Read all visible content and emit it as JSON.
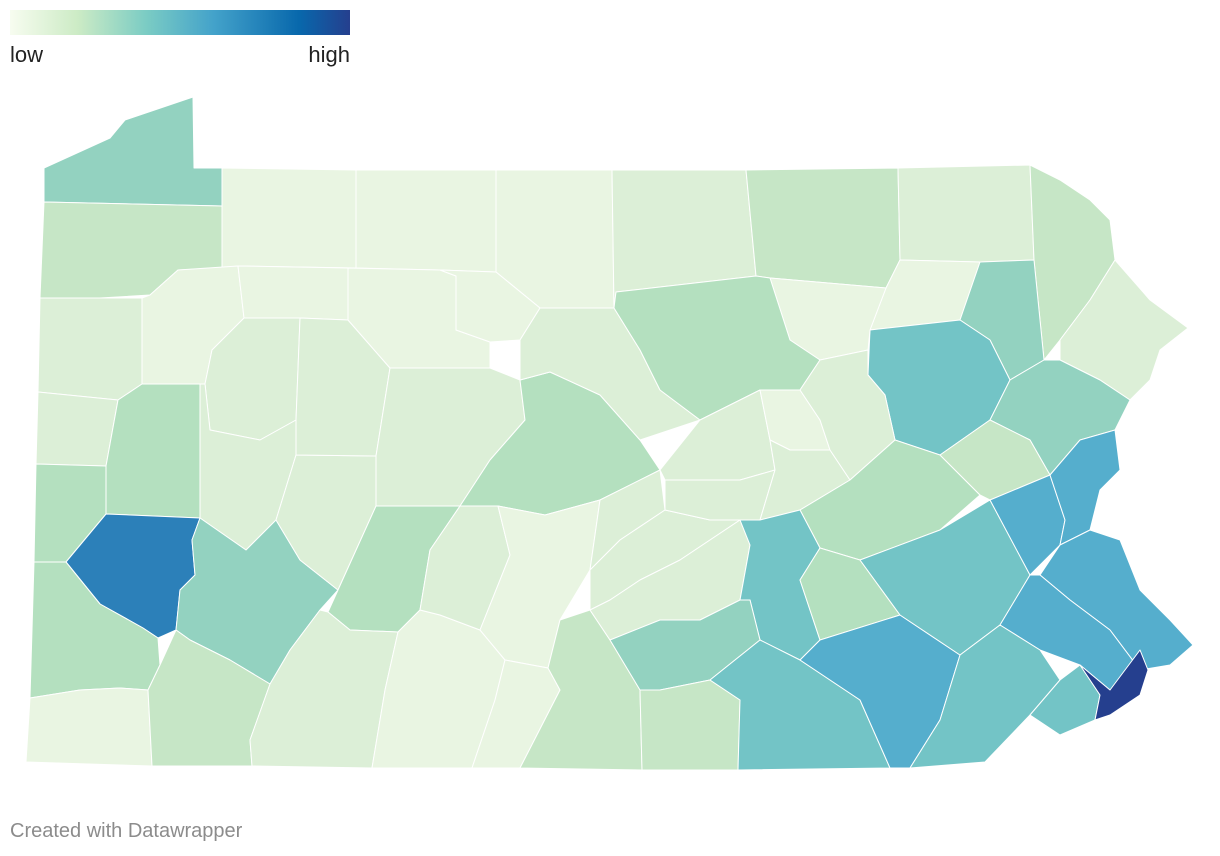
{
  "legend": {
    "low_label": "low",
    "high_label": "high",
    "gradient_colors": [
      "#f7fcf0",
      "#ccebc5",
      "#7bccc4",
      "#43a2ca",
      "#0868ac",
      "#253f8e"
    ]
  },
  "map": {
    "region": "Pennsylvania",
    "unit": "county",
    "fill_colors": {
      "very_low": "#e9f5e2",
      "low": "#dcefd7",
      "low_mid": "#c6e6c6",
      "mid_low": "#b4e0bf",
      "mid": "#93d2c0",
      "mid_high": "#73c4c6",
      "high": "#55aecd",
      "very_high": "#2c80b9",
      "highest": "#253f8e"
    },
    "counties": [
      {
        "id": "erie",
        "level": "mid"
      },
      {
        "id": "crawford",
        "level": "low_mid"
      },
      {
        "id": "mercer",
        "level": "low"
      },
      {
        "id": "lawrence",
        "level": "low"
      },
      {
        "id": "beaver",
        "level": "mid_low"
      },
      {
        "id": "butler",
        "level": "mid_low"
      },
      {
        "id": "allegheny",
        "level": "very_high"
      },
      {
        "id": "washington",
        "level": "mid_low"
      },
      {
        "id": "greene",
        "level": "very_low"
      },
      {
        "id": "fayette",
        "level": "low_mid"
      },
      {
        "id": "westmoreland",
        "level": "mid"
      },
      {
        "id": "somerset",
        "level": "low"
      },
      {
        "id": "bedford",
        "level": "very_low"
      },
      {
        "id": "fulton",
        "level": "very_low"
      },
      {
        "id": "franklin",
        "level": "low_mid"
      },
      {
        "id": "adams",
        "level": "low_mid"
      },
      {
        "id": "york",
        "level": "mid_high"
      },
      {
        "id": "lancaster",
        "level": "high"
      },
      {
        "id": "chester",
        "level": "mid_high"
      },
      {
        "id": "delaware",
        "level": "mid_high"
      },
      {
        "id": "philadelphia",
        "level": "highest"
      },
      {
        "id": "montgomery",
        "level": "high"
      },
      {
        "id": "bucks",
        "level": "high"
      },
      {
        "id": "lehigh",
        "level": "high"
      },
      {
        "id": "northampton",
        "level": "high"
      },
      {
        "id": "berks",
        "level": "mid_high"
      },
      {
        "id": "lebanon",
        "level": "mid_low"
      },
      {
        "id": "dauphin",
        "level": "mid_high"
      },
      {
        "id": "cumberland",
        "level": "mid"
      },
      {
        "id": "perry",
        "level": "low"
      },
      {
        "id": "juniata",
        "level": "low"
      },
      {
        "id": "mifflin",
        "level": "low"
      },
      {
        "id": "huntingdon",
        "level": "very_low"
      },
      {
        "id": "blair",
        "level": "low"
      },
      {
        "id": "cambria",
        "level": "mid_low"
      },
      {
        "id": "indiana",
        "level": "low"
      },
      {
        "id": "armstrong",
        "level": "low"
      },
      {
        "id": "clarion",
        "level": "low"
      },
      {
        "id": "venango",
        "level": "very_low"
      },
      {
        "id": "forest",
        "level": "very_low"
      },
      {
        "id": "warren",
        "level": "very_low"
      },
      {
        "id": "mckean",
        "level": "very_low"
      },
      {
        "id": "elk",
        "level": "very_low"
      },
      {
        "id": "jefferson",
        "level": "low"
      },
      {
        "id": "clearfield",
        "level": "low"
      },
      {
        "id": "centre",
        "level": "mid_low"
      },
      {
        "id": "cameron",
        "level": "very_low"
      },
      {
        "id": "potter",
        "level": "very_low"
      },
      {
        "id": "clinton",
        "level": "low"
      },
      {
        "id": "tioga",
        "level": "low"
      },
      {
        "id": "lycoming",
        "level": "mid_low"
      },
      {
        "id": "union",
        "level": "low"
      },
      {
        "id": "snyder",
        "level": "low"
      },
      {
        "id": "northumberland",
        "level": "low"
      },
      {
        "id": "montour",
        "level": "very_low"
      },
      {
        "id": "columbia",
        "level": "low"
      },
      {
        "id": "sullivan",
        "level": "very_low"
      },
      {
        "id": "bradford",
        "level": "low_mid"
      },
      {
        "id": "susquehanna",
        "level": "low"
      },
      {
        "id": "wyoming",
        "level": "very_low"
      },
      {
        "id": "luzerne",
        "level": "mid_high"
      },
      {
        "id": "lackawanna",
        "level": "mid"
      },
      {
        "id": "wayne",
        "level": "low_mid"
      },
      {
        "id": "pike",
        "level": "low"
      },
      {
        "id": "monroe",
        "level": "mid"
      },
      {
        "id": "carbon",
        "level": "low_mid"
      },
      {
        "id": "schuylkill",
        "level": "mid_low"
      }
    ]
  },
  "credit": "Created with Datawrapper"
}
